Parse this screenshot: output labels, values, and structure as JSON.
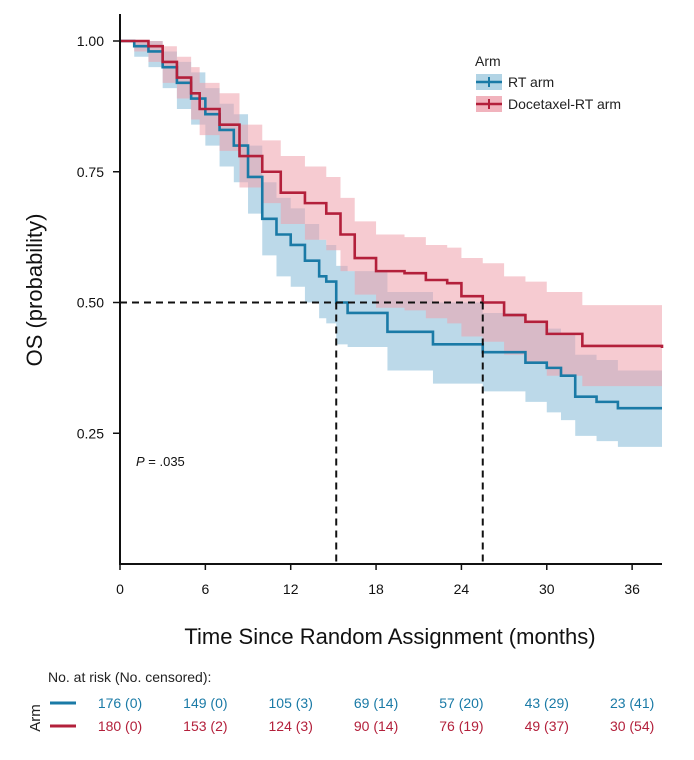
{
  "chart_data": {
    "type": "line",
    "subtype": "kaplan-meier",
    "xlabel": "Time Since Random Assignment (months)",
    "ylabel": "OS (probability)",
    "xlim": [
      0,
      38.1
    ],
    "ylim": [
      0,
      1.0
    ],
    "xticks": [
      0,
      6,
      12,
      18,
      24,
      30,
      36
    ],
    "yticks": [
      {
        "value": 0.25,
        "label": "0.25"
      },
      {
        "value": 0.5,
        "label": "0.50"
      },
      {
        "value": 0.75,
        "label": "0.75"
      },
      {
        "value": 1.0,
        "label": "1.00"
      }
    ],
    "grid": false,
    "legend": {
      "title": "Arm",
      "placement": "top-right"
    },
    "annotation": {
      "p_label": "P",
      "p_value": " = .035"
    },
    "median_lines": {
      "survival": 0.5,
      "medians": [
        15.2,
        25.5
      ]
    },
    "series": [
      {
        "name": "RT arm",
        "color": "#1a7aa6",
        "band_color": "#9fc9df",
        "time": [
          0,
          1,
          2,
          3,
          4,
          5,
          6,
          7,
          8,
          9,
          10,
          11,
          12,
          13,
          14,
          14.5,
          15.2,
          16,
          18.8,
          22,
          25.5,
          28.5,
          30,
          31,
          32,
          33.5,
          35,
          38.1
        ],
        "surv": [
          1.0,
          0.99,
          0.98,
          0.95,
          0.92,
          0.89,
          0.86,
          0.83,
          0.8,
          0.74,
          0.66,
          0.63,
          0.61,
          0.58,
          0.55,
          0.54,
          0.5,
          0.48,
          0.444,
          0.42,
          0.405,
          0.385,
          0.375,
          0.36,
          0.32,
          0.31,
          0.298,
          0.298
        ],
        "lower": [
          1.0,
          0.97,
          0.95,
          0.91,
          0.87,
          0.84,
          0.8,
          0.76,
          0.73,
          0.67,
          0.59,
          0.55,
          0.53,
          0.5,
          0.47,
          0.46,
          0.42,
          0.415,
          0.37,
          0.345,
          0.33,
          0.31,
          0.29,
          0.275,
          0.245,
          0.235,
          0.224,
          0.224
        ],
        "upper": [
          1.0,
          1.0,
          1.0,
          0.98,
          0.96,
          0.94,
          0.91,
          0.88,
          0.86,
          0.8,
          0.73,
          0.7,
          0.68,
          0.65,
          0.62,
          0.61,
          0.57,
          0.56,
          0.52,
          0.5,
          0.48,
          0.46,
          0.45,
          0.44,
          0.4,
          0.39,
          0.37,
          0.37
        ]
      },
      {
        "name": "Docetaxel-RT arm",
        "color": "#b3203b",
        "band_color": "#eea0ac",
        "time": [
          0,
          1,
          2,
          3,
          4,
          5,
          5.6,
          7,
          8.4,
          10,
          11.3,
          13,
          14.5,
          15.5,
          16.5,
          18,
          20,
          21.5,
          23,
          24,
          25.5,
          27,
          28.5,
          30,
          31.5,
          32.5,
          38.1
        ],
        "surv": [
          1.0,
          1.0,
          0.99,
          0.96,
          0.93,
          0.9,
          0.87,
          0.84,
          0.78,
          0.75,
          0.71,
          0.69,
          0.67,
          0.63,
          0.585,
          0.56,
          0.556,
          0.543,
          0.537,
          0.512,
          0.5,
          0.476,
          0.463,
          0.44,
          0.44,
          0.417,
          0.413
        ],
        "lower": [
          1.0,
          0.98,
          0.96,
          0.92,
          0.89,
          0.85,
          0.82,
          0.79,
          0.72,
          0.69,
          0.65,
          0.62,
          0.6,
          0.56,
          0.515,
          0.49,
          0.485,
          0.47,
          0.46,
          0.435,
          0.425,
          0.4,
          0.385,
          0.36,
          0.36,
          0.34,
          0.336
        ],
        "upper": [
          1.0,
          1.0,
          1.0,
          0.99,
          0.97,
          0.95,
          0.92,
          0.9,
          0.84,
          0.81,
          0.78,
          0.76,
          0.74,
          0.7,
          0.655,
          0.63,
          0.625,
          0.61,
          0.605,
          0.585,
          0.575,
          0.55,
          0.54,
          0.52,
          0.52,
          0.495,
          0.493
        ]
      }
    ],
    "risk_table": {
      "title": "No. at risk (No. censored):",
      "row_label": "Arm",
      "rows": [
        {
          "color": "#1a7aa6",
          "values": [
            "176 (0)",
            "149 (0)",
            "105 (3)",
            "69 (14)",
            "57 (20)",
            "43 (29)",
            "23 (41)"
          ]
        },
        {
          "color": "#b3203b",
          "values": [
            "180 (0)",
            "153 (2)",
            "124 (3)",
            "90 (14)",
            "76 (19)",
            "49 (37)",
            "30 (54)"
          ]
        }
      ]
    }
  }
}
